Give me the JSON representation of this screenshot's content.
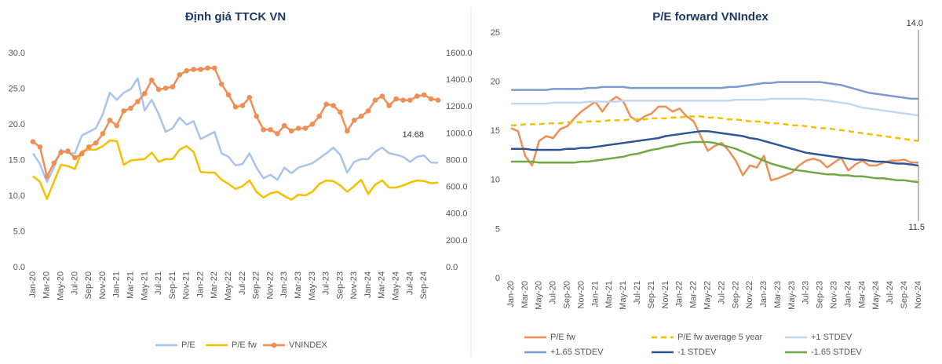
{
  "chart_data": [
    {
      "type": "line",
      "title": "Định giá TTCK VN",
      "categories": [
        "Jan-20",
        null,
        "Mar-20",
        null,
        "May-20",
        null,
        "Jul-20",
        null,
        "Sep-20",
        null,
        "Nov-20",
        null,
        "Jan-21",
        null,
        "Mar-21",
        null,
        "May-21",
        null,
        "Jul-21",
        null,
        "Sep-21",
        null,
        "Nov-21",
        null,
        "Jan-22",
        null,
        "Mar-22",
        null,
        "May-22",
        null,
        "Jul-22",
        null,
        "Sep-22",
        null,
        "Nov-22",
        null,
        "Jan-23",
        null,
        "Mar-23",
        null,
        "May-23",
        null,
        "Jul-23",
        null,
        "Sep-23",
        null,
        "Nov-23",
        null,
        "Jan-24",
        null,
        "Mar-24",
        null,
        "May-24",
        null,
        "Jul-24",
        null,
        "Sep-24",
        null,
        null
      ],
      "series": [
        {
          "name": "P/E",
          "color": "#a9c4eb",
          "values": [
            16,
            14.5,
            12,
            14,
            16.5,
            16,
            16,
            18.5,
            19,
            19.5,
            21.5,
            24.5,
            23.5,
            24.5,
            25,
            26.5,
            22,
            23.5,
            21.5,
            19,
            19.5,
            21,
            20,
            20.5,
            18,
            18.5,
            19,
            16,
            15.5,
            14.3,
            14.5,
            16,
            14,
            12.5,
            13,
            12.3,
            14,
            13.2,
            14,
            14.3,
            14.6,
            15.3,
            16,
            16.8,
            15.8,
            13.3,
            14.8,
            15.2,
            15.2,
            16.2,
            16.8,
            16,
            15.8,
            15.5,
            14.8,
            15.5,
            15.7,
            14.7,
            14.68
          ]
        },
        {
          "name": "P/E fw",
          "color": "#f5c000",
          "values": [
            12.8,
            12,
            9.6,
            12,
            14.4,
            14.2,
            13.8,
            16.3,
            16.5,
            16.5,
            17,
            17.8,
            17.7,
            14.4,
            15,
            15.1,
            15.2,
            16.1,
            14.8,
            15.2,
            15.2,
            16.5,
            17,
            16.2,
            13.4,
            13.3,
            13.3,
            12.3,
            11.7,
            11,
            11.4,
            12.2,
            10.6,
            9.8,
            10.4,
            10.6,
            10,
            9.5,
            10.2,
            10.1,
            10.6,
            11.7,
            12.2,
            12.1,
            11.5,
            10.6,
            11.4,
            12.3,
            10.3,
            11.6,
            12.2,
            11.2,
            11.2,
            11.5,
            11.9,
            12.2,
            12.1,
            11.8,
            11.9
          ]
        },
        {
          "name": "VNINDEX",
          "color": "#ef8f56",
          "axis": "y2",
          "marker": true,
          "values": [
            940,
            900,
            680,
            780,
            860,
            870,
            820,
            850,
            900,
            930,
            1000,
            1100,
            1060,
            1170,
            1190,
            1240,
            1300,
            1400,
            1330,
            1340,
            1350,
            1440,
            1470,
            1480,
            1480,
            1490,
            1490,
            1370,
            1290,
            1200,
            1210,
            1270,
            1130,
            1030,
            1030,
            1000,
            1060,
            1020,
            1040,
            1040,
            1070,
            1130,
            1220,
            1210,
            1160,
            1020,
            1100,
            1130,
            1170,
            1250,
            1280,
            1210,
            1260,
            1250,
            1250,
            1280,
            1290,
            1260,
            1250
          ]
        }
      ],
      "ylim": [
        0,
        30
      ],
      "yticks": [
        {
          "value": 0,
          "label": "0.0"
        },
        {
          "value": 5,
          "label": "5.0"
        },
        {
          "value": 10,
          "label": "10.0"
        },
        {
          "value": 15,
          "label": "15.0"
        },
        {
          "value": 20,
          "label": "20.0"
        },
        {
          "value": 25,
          "label": "25.0"
        },
        {
          "value": 30,
          "label": "30.0"
        }
      ],
      "y2lim": [
        0,
        1600
      ],
      "y2ticks": [
        {
          "value": 0,
          "label": "0.0"
        },
        {
          "value": 200,
          "label": "200.0"
        },
        {
          "value": 400,
          "label": "400.0"
        },
        {
          "value": 600,
          "label": "600.0"
        },
        {
          "value": 800,
          "label": "800.0"
        },
        {
          "value": 1000,
          "label": "1000.0"
        },
        {
          "value": 1200,
          "label": "1200.0"
        },
        {
          "value": 1400,
          "label": "1400.0"
        },
        {
          "value": 1600,
          "label": "1600.0"
        }
      ],
      "annotations": [
        "14.68"
      ],
      "grid": false,
      "legend": "bottom"
    },
    {
      "type": "line",
      "title": "P/E forward VNIndex",
      "categories": [
        "Jan-20",
        null,
        "Mar-20",
        null,
        "May-20",
        null,
        "Jul-20",
        null,
        "Sep-20",
        null,
        "Nov-20",
        null,
        "Jan-21",
        null,
        "Mar-21",
        null,
        "May-21",
        null,
        "Jul-21",
        null,
        "Sep-21",
        null,
        "Nov-21",
        null,
        "Jan-22",
        null,
        "Mar-22",
        null,
        "May-22",
        null,
        "Jul-22",
        null,
        "Sep-22",
        null,
        "Nov-22",
        null,
        "Jan-23",
        null,
        "Mar-23",
        null,
        "May-23",
        null,
        "Jul-23",
        null,
        "Sep-23",
        null,
        "Nov-23",
        null,
        "Jan-24",
        null,
        "Mar-24",
        null,
        "May-24",
        null,
        "Jul-24",
        null,
        "Sep-24",
        null,
        "Nov-24"
      ],
      "series": [
        {
          "name": "P/E fw",
          "color": "#ef8f56",
          "values": [
            15.3,
            15,
            12.5,
            11.5,
            14,
            14.5,
            14.3,
            15.2,
            15.5,
            16.3,
            17,
            17.5,
            18,
            17,
            18,
            18.5,
            18,
            16.5,
            16,
            16.5,
            16.8,
            17.5,
            17.5,
            17,
            17.3,
            16.5,
            16,
            14.5,
            13,
            13.5,
            13.8,
            13,
            12,
            10.5,
            11.5,
            11.3,
            12.5,
            10,
            10.2,
            10.5,
            10.8,
            11.5,
            12,
            12.2,
            12,
            11.3,
            11.8,
            12.3,
            11,
            11.6,
            12,
            11.5,
            11.5,
            11.8,
            12,
            12,
            12.1,
            11.8,
            11.8
          ]
        },
        {
          "name": "P/E fw average 5 year",
          "color": "#f5c000",
          "style": "dashed",
          "values": [
            15.6,
            15.6,
            15.7,
            15.7,
            15.7,
            15.8,
            15.8,
            15.8,
            15.9,
            15.9,
            15.9,
            16.0,
            16.0,
            16.0,
            16.1,
            16.1,
            16.1,
            16.2,
            16.2,
            16.2,
            16.3,
            16.3,
            16.3,
            16.4,
            16.4,
            16.5,
            16.5,
            16.5,
            16.4,
            16.4,
            16.3,
            16.2,
            16.2,
            16.1,
            16.0,
            16.0,
            15.9,
            15.8,
            15.8,
            15.7,
            15.6,
            15.6,
            15.5,
            15.4,
            15.3,
            15.3,
            15.2,
            15.1,
            15.0,
            14.9,
            14.8,
            14.7,
            14.6,
            14.5,
            14.4,
            14.3,
            14.2,
            14.1,
            14.0
          ]
        },
        {
          "name": "+1 STDEV",
          "color": "#c5d6ef",
          "values": [
            17.8,
            17.8,
            17.8,
            17.8,
            17.8,
            17.8,
            17.9,
            17.9,
            17.9,
            17.9,
            17.9,
            18.0,
            18.0,
            18.0,
            18.0,
            18.0,
            18.1,
            18.1,
            18.1,
            18.1,
            18.1,
            18.1,
            18.1,
            18.1,
            18.1,
            18.1,
            18.1,
            18.1,
            18.1,
            18.1,
            18.1,
            18.1,
            18.2,
            18.2,
            18.2,
            18.2,
            18.2,
            18.3,
            18.3,
            18.3,
            18.3,
            18.3,
            18.3,
            18.2,
            18.2,
            18.1,
            18.0,
            17.9,
            17.8,
            17.6,
            17.4,
            17.3,
            17.2,
            17.1,
            17.0,
            16.9,
            16.8,
            16.7,
            16.6
          ]
        },
        {
          "name": "+1.65 STDEV",
          "color": "#7b9bd0",
          "values": [
            19.2,
            19.2,
            19.2,
            19.2,
            19.2,
            19.2,
            19.3,
            19.3,
            19.3,
            19.3,
            19.3,
            19.4,
            19.4,
            19.5,
            19.5,
            19.5,
            19.5,
            19.4,
            19.4,
            19.4,
            19.4,
            19.4,
            19.4,
            19.4,
            19.4,
            19.4,
            19.4,
            19.4,
            19.4,
            19.4,
            19.4,
            19.5,
            19.5,
            19.6,
            19.7,
            19.8,
            19.9,
            19.9,
            20.0,
            20.0,
            20.0,
            20.0,
            20.0,
            20.0,
            20.0,
            19.9,
            19.8,
            19.7,
            19.5,
            19.3,
            19.1,
            18.9,
            18.8,
            18.7,
            18.6,
            18.5,
            18.4,
            18.3,
            18.3
          ]
        },
        {
          "name": "-1 STDEV",
          "color": "#2f5597",
          "values": [
            13.2,
            13.2,
            13.2,
            13.1,
            13.1,
            13.1,
            13.1,
            13.1,
            13.2,
            13.2,
            13.3,
            13.3,
            13.4,
            13.5,
            13.6,
            13.7,
            13.8,
            13.9,
            14.0,
            14.1,
            14.2,
            14.3,
            14.5,
            14.6,
            14.7,
            14.8,
            14.9,
            15.0,
            15.0,
            14.9,
            14.8,
            14.7,
            14.6,
            14.5,
            14.3,
            14.2,
            14.0,
            13.8,
            13.6,
            13.4,
            13.2,
            13.0,
            12.8,
            12.7,
            12.6,
            12.5,
            12.4,
            12.3,
            12.2,
            12.1,
            12.1,
            12.0,
            11.9,
            11.9,
            11.8,
            11.7,
            11.7,
            11.6,
            11.5
          ]
        },
        {
          "name": "-1.65 STDEV",
          "color": "#70a844",
          "values": [
            11.9,
            11.9,
            11.9,
            11.9,
            11.8,
            11.8,
            11.8,
            11.8,
            11.8,
            11.8,
            11.9,
            11.9,
            12.0,
            12.1,
            12.2,
            12.3,
            12.4,
            12.6,
            12.7,
            12.9,
            13.1,
            13.2,
            13.4,
            13.5,
            13.7,
            13.8,
            13.9,
            13.9,
            13.9,
            13.8,
            13.6,
            13.4,
            13.2,
            12.9,
            12.6,
            12.3,
            12.0,
            11.7,
            11.5,
            11.3,
            11.1,
            11.0,
            10.9,
            10.8,
            10.7,
            10.6,
            10.6,
            10.5,
            10.5,
            10.4,
            10.4,
            10.3,
            10.2,
            10.2,
            10.1,
            10.0,
            10.0,
            9.9,
            9.8
          ]
        }
      ],
      "ylim": [
        0,
        25
      ],
      "yticks": [
        0,
        5,
        10,
        15,
        20,
        25
      ],
      "annotations": [
        "14.0",
        "11.5"
      ],
      "grid": false,
      "legend": "bottom"
    }
  ]
}
